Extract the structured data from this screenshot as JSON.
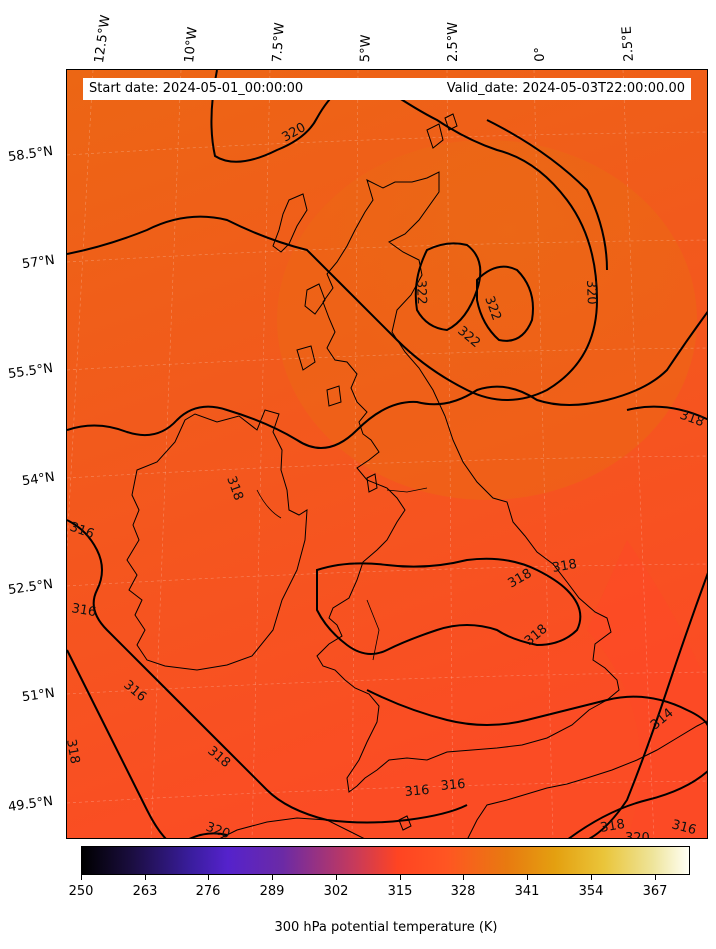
{
  "header": {
    "start_date": "Start date: 2024-05-01_00:00:00",
    "valid_date": "Valid_date: 2024-05-03T22:00:00.00"
  },
  "longitude_labels": [
    "12.5°W",
    "10°W",
    "7.5°W",
    "5°W",
    "2.5°W",
    "0°",
    "2.5°E"
  ],
  "latitude_labels": [
    "58.5°N",
    "57°N",
    "55.5°N",
    "54°N",
    "52.5°N",
    "51°N",
    "49.5°N"
  ],
  "contour_labels": [
    "320",
    "322",
    "322",
    "322",
    "320",
    "318",
    "318",
    "316",
    "316",
    "316",
    "318",
    "318",
    "318",
    "316",
    "316",
    "314",
    "318",
    "320",
    "318",
    "316",
    "320"
  ],
  "colorbar": {
    "ticks": [
      "250",
      "263",
      "276",
      "289",
      "302",
      "315",
      "328",
      "341",
      "354",
      "367"
    ],
    "label": "300 hPa potential temperature (K)",
    "colormap": "CMRmap"
  },
  "colors": {
    "field_north": "#ec6614",
    "field_south": "#fc4f24",
    "contour": "#000000",
    "coastline": "#000000"
  }
}
